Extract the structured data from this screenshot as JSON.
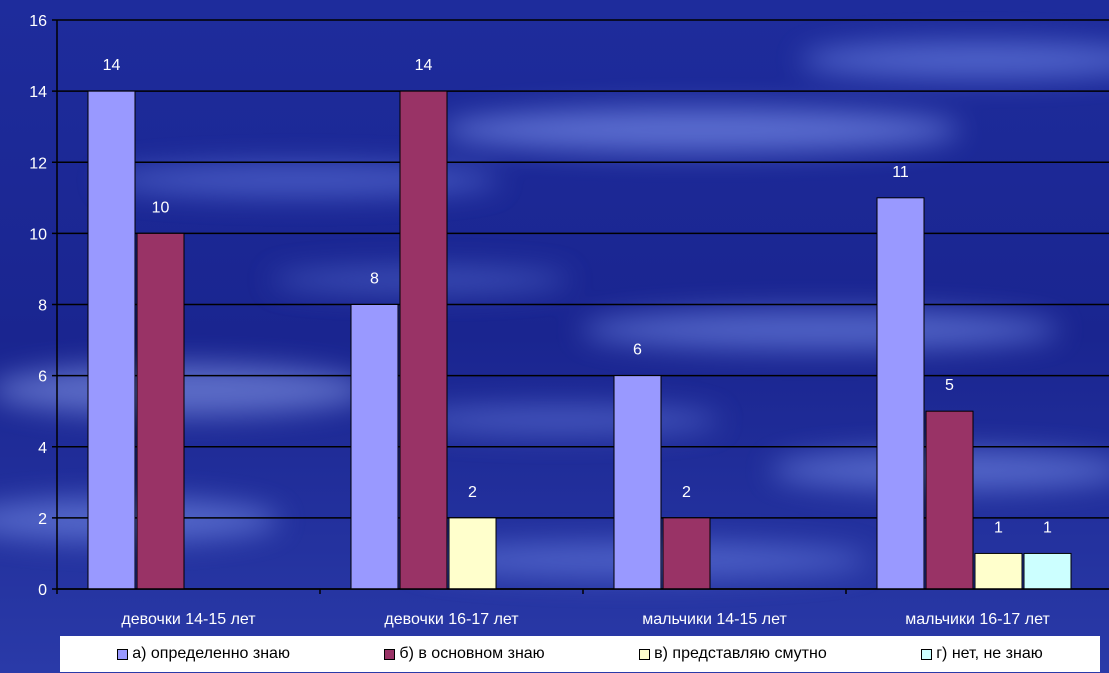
{
  "chart_data": {
    "type": "bar",
    "categories": [
      "девочки 14-15 лет",
      "девочки 16-17 лет",
      "мальчики 14-15 лет",
      "мальчики 16-17 лет"
    ],
    "series": [
      {
        "name": "а) определенно знаю",
        "values": [
          14,
          8,
          6,
          11
        ],
        "color": "#9999ff"
      },
      {
        "name": "б) в основном знаю",
        "values": [
          10,
          14,
          2,
          5
        ],
        "color": "#993366"
      },
      {
        "name": "в) представляю смутно",
        "values": [
          null,
          2,
          null,
          1
        ],
        "color": "#ffffcc"
      },
      {
        "name": "г) нет, не знаю",
        "values": [
          null,
          null,
          null,
          1
        ],
        "color": "#ccffff"
      }
    ],
    "ylim": [
      0,
      16
    ],
    "yticks": [
      0,
      2,
      4,
      6,
      8,
      10,
      12,
      14,
      16
    ],
    "grid": true,
    "legend_position": "bottom",
    "title": "",
    "xlabel": "",
    "ylabel": ""
  },
  "legend": {
    "items": [
      {
        "label": "а) определенно знаю",
        "color": "#9999ff"
      },
      {
        "label": "б) в основном знаю",
        "color": "#993366"
      },
      {
        "label": "в) представляю смутно",
        "color": "#ffffcc"
      },
      {
        "label": "г) нет, не знаю",
        "color": "#ccffff"
      }
    ]
  },
  "colors": {
    "background": "#1a2a8a",
    "gridline": "#000000",
    "text": "#ffffff"
  }
}
